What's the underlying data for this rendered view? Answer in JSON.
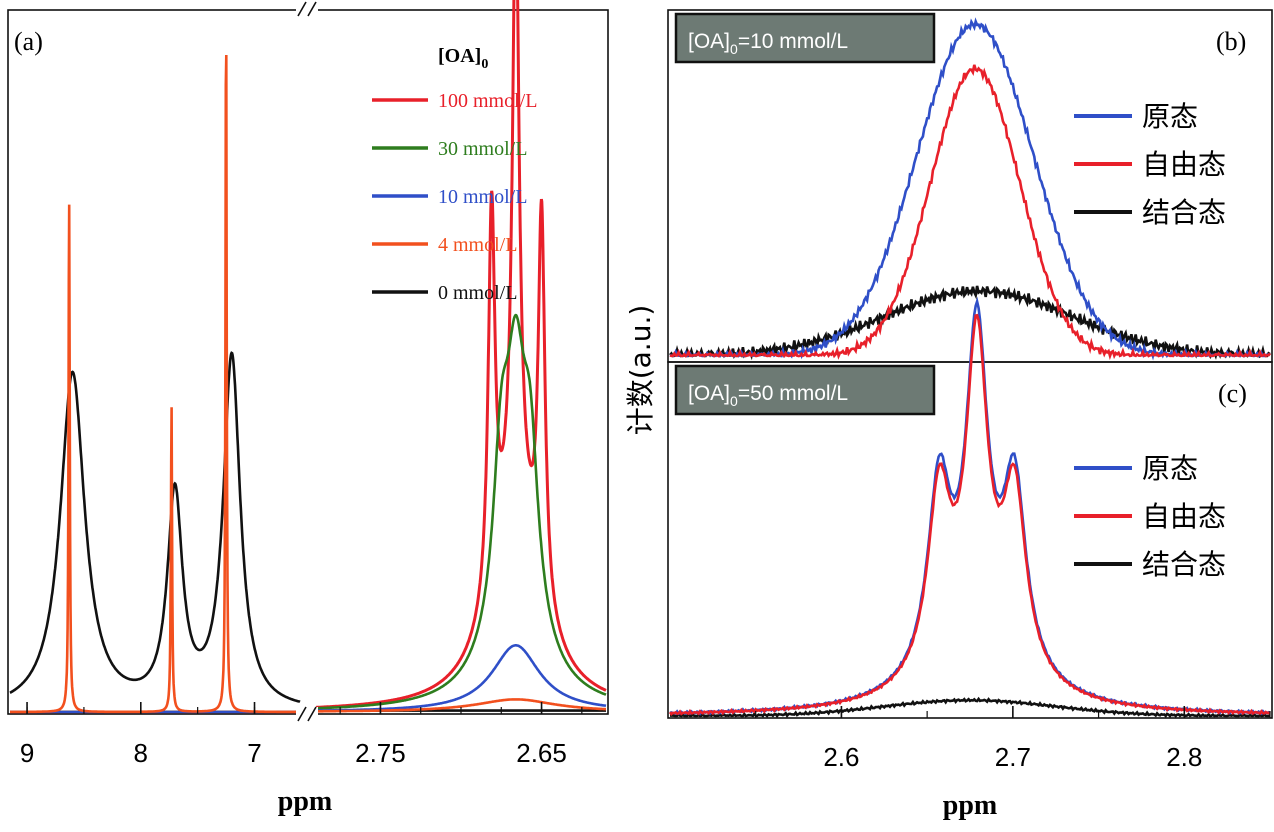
{
  "colors": {
    "red": "#e8202a",
    "green": "#2e7d1e",
    "blue": "#2f4fc8",
    "orange": "#f2501e",
    "black": "#111111",
    "box_fill": "#6d7a74"
  },
  "chart_data": [
    {
      "panel": "(a)",
      "type": "line",
      "xlabel": "ppm",
      "x_broken_axis": true,
      "x_segments": [
        {
          "xlim": [
            9.15,
            6.6
          ],
          "ticks": [
            9,
            8,
            7
          ]
        },
        {
          "xlim": [
            2.79,
            2.61
          ],
          "ticks": [
            2.75,
            2.65
          ]
        }
      ],
      "legend_title": "[OA]",
      "legend_title_sub": "0",
      "legend_position": "top-right",
      "series": [
        {
          "name": "100 mmol/L",
          "color": "red",
          "peaks": [
            {
              "x": 2.681,
              "h": 0.55,
              "w": 0.0025
            },
            {
              "x": 2.666,
              "h": 0.86,
              "w": 0.0025
            },
            {
              "x": 2.65,
              "h": 0.55,
              "w": 0.0025
            },
            {
              "x": 2.666,
              "h": 0.28,
              "w": 0.018
            }
          ]
        },
        {
          "name": "30 mmol/L",
          "color": "green",
          "peaks": [
            {
              "x": 2.675,
              "h": 0.22,
              "w": 0.006
            },
            {
              "x": 2.666,
              "h": 0.3,
              "w": 0.007
            },
            {
              "x": 2.657,
              "h": 0.22,
              "w": 0.006
            },
            {
              "x": 2.666,
              "h": 0.13,
              "w": 0.02
            }
          ]
        },
        {
          "name": "10 mmol/L",
          "color": "blue",
          "peaks": [
            {
              "x": 2.666,
              "h": 0.095,
              "w": 0.018
            }
          ]
        },
        {
          "name": "4 mmol/L",
          "color": "orange",
          "peaks": [
            {
              "x": 8.63,
              "h": 0.74,
              "w": 0.006
            },
            {
              "x": 7.73,
              "h": 0.44,
              "w": 0.006
            },
            {
              "x": 7.25,
              "h": 1.0,
              "w": 0.006
            },
            {
              "x": 2.666,
              "h": 0.018,
              "w": 0.03
            }
          ]
        },
        {
          "name": "0 mmol/L",
          "color": "black",
          "peaks": [
            {
              "x": 8.6,
              "h": 0.48,
              "w": 0.13
            },
            {
              "x": 7.7,
              "h": 0.3,
              "w": 0.08
            },
            {
              "x": 7.2,
              "h": 0.5,
              "w": 0.09
            }
          ]
        }
      ]
    },
    {
      "panel": "(b)",
      "type": "line",
      "annotation": "[OA]",
      "annotation_sub": "0",
      "annotation_rest": "=10 mmol/L",
      "ylabel": "计数(a.u.)",
      "xlim": [
        2.5,
        2.85
      ],
      "legend_position": "right",
      "series": [
        {
          "name": "原态",
          "color": "blue",
          "center": 2.678,
          "height": 0.97,
          "sigma": 0.034
        },
        {
          "name": "自由态",
          "color": "red",
          "center": 2.678,
          "height": 0.84,
          "sigma": 0.026
        },
        {
          "name": "结合态",
          "color": "black",
          "center": 2.68,
          "height": 0.19,
          "sigma": 0.055
        }
      ]
    },
    {
      "panel": "(c)",
      "type": "line",
      "annotation": "[OA]",
      "annotation_sub": "0",
      "annotation_rest": "=50 mmol/L",
      "xlabel": "ppm",
      "xlim": [
        2.5,
        2.85
      ],
      "xticks": [
        2.6,
        2.7,
        2.8
      ],
      "legend_position": "right",
      "series": [
        {
          "name": "原态",
          "color": "blue",
          "peaks": [
            {
              "x": 2.657,
              "h": 0.52,
              "w": 0.008
            },
            {
              "x": 2.679,
              "h": 0.88,
              "w": 0.0075
            },
            {
              "x": 2.701,
              "h": 0.52,
              "w": 0.008
            },
            {
              "x": 2.679,
              "h": 0.18,
              "w": 0.03
            }
          ]
        },
        {
          "name": "自由态",
          "color": "red",
          "peaks": [
            {
              "x": 2.657,
              "h": 0.5,
              "w": 0.008
            },
            {
              "x": 2.679,
              "h": 0.86,
              "w": 0.0075
            },
            {
              "x": 2.701,
              "h": 0.5,
              "w": 0.008
            },
            {
              "x": 2.679,
              "h": 0.17,
              "w": 0.03
            }
          ]
        },
        {
          "name": "结合态",
          "color": "black",
          "center": 2.675,
          "height": 0.045,
          "sigma": 0.05
        }
      ]
    }
  ]
}
